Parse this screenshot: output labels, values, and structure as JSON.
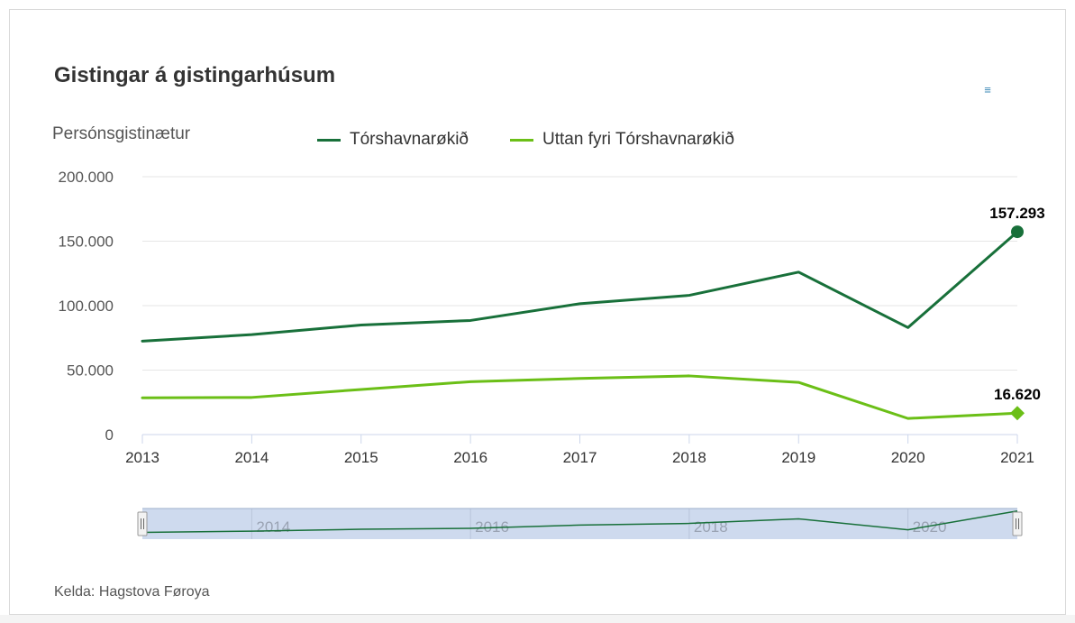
{
  "title": "Gistingar á gistingarhúsum",
  "menu_icon": "hamburger-menu-icon",
  "source": "Kelda: Hagstova Føroya",
  "colors": {
    "series1": "#18703a",
    "series2": "#6bbf17",
    "navigator_fill": "#c9d6ec",
    "grid": "#e6e6e6"
  },
  "chart_data": {
    "type": "line",
    "title": "Gistingar á gistingarhúsum",
    "ylabel": "Persónsgistinætur",
    "xlabel": "",
    "ylim": [
      0,
      200000
    ],
    "yticks": [
      "200.000",
      "150.000",
      "100.000",
      "50.000",
      "0"
    ],
    "categories": [
      "2013",
      "2014",
      "2015",
      "2016",
      "2017",
      "2018",
      "2019",
      "2020",
      "2021"
    ],
    "series": [
      {
        "name": "Tórshavnarøkið",
        "values": [
          72500,
          77500,
          85000,
          88500,
          101500,
          108000,
          126000,
          83000,
          157293
        ],
        "last_label": "157.293",
        "marker": "circle"
      },
      {
        "name": "Uttan fyri Tórshavnarøkið",
        "values": [
          28500,
          28800,
          35000,
          41000,
          43500,
          45500,
          40500,
          12500,
          16620
        ],
        "last_label": "16.620",
        "marker": "diamond"
      }
    ],
    "grid": true,
    "legend_position": "top",
    "navigator_ticks": [
      "2014",
      "2016",
      "2018",
      "2020"
    ]
  }
}
